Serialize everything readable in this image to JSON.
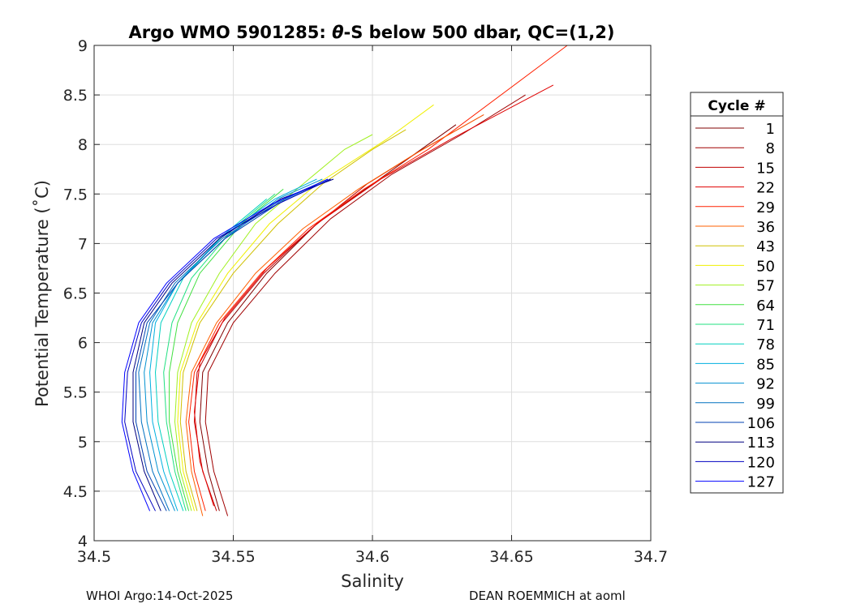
{
  "chart_data": {
    "type": "line",
    "title": "Argo WMO 5901285: θ-S below 500 dbar,  QC=(1,2)",
    "title_prefix": "Argo WMO 5901285: ",
    "title_theta": "θ",
    "title_suffix": "-S below 500 dbar,  QC=(1,2)",
    "xlabel": "Salinity",
    "ylabel": "Potential Temperature (˚C)",
    "xlim": [
      34.5,
      34.7
    ],
    "ylim": [
      4,
      9
    ],
    "xticks": [
      34.5,
      34.55,
      34.6,
      34.65,
      34.7
    ],
    "xtick_labels": [
      "34.5",
      "34.55",
      "34.6",
      "34.65",
      "34.7"
    ],
    "yticks": [
      4,
      4.5,
      5,
      5.5,
      6,
      6.5,
      7,
      7.5,
      8,
      8.5,
      9
    ],
    "ytick_labels": [
      "4",
      "4.5",
      "5",
      "5.5",
      "6",
      "6.5",
      "7",
      "7.5",
      "8",
      "8.5",
      "9"
    ],
    "grid": true,
    "legend_title": "Cycle #",
    "legend_position": "right",
    "series": [
      {
        "name": "1",
        "color": "#800000",
        "points": [
          [
            34.545,
            4.3
          ],
          [
            34.541,
            4.7
          ],
          [
            34.538,
            5.2
          ],
          [
            34.539,
            5.7
          ],
          [
            34.548,
            6.2
          ],
          [
            34.562,
            6.7
          ],
          [
            34.58,
            7.2
          ],
          [
            34.6,
            7.6
          ],
          [
            34.62,
            8.0
          ],
          [
            34.63,
            8.2
          ]
        ]
      },
      {
        "name": "8",
        "color": "#a00000",
        "points": [
          [
            34.548,
            4.25
          ],
          [
            34.543,
            4.7
          ],
          [
            34.54,
            5.2
          ],
          [
            34.541,
            5.7
          ],
          [
            34.55,
            6.2
          ],
          [
            34.565,
            6.7
          ],
          [
            34.585,
            7.25
          ],
          [
            34.607,
            7.7
          ],
          [
            34.632,
            8.1
          ],
          [
            34.655,
            8.5
          ]
        ]
      },
      {
        "name": "15",
        "color": "#c00000",
        "points": [
          [
            34.544,
            4.3
          ],
          [
            34.539,
            4.7
          ],
          [
            34.536,
            5.2
          ],
          [
            34.537,
            5.7
          ],
          [
            34.546,
            6.2
          ],
          [
            34.561,
            6.7
          ],
          [
            34.578,
            7.15
          ],
          [
            34.598,
            7.6
          ],
          [
            34.618,
            7.95
          ],
          [
            34.64,
            8.3
          ]
        ]
      },
      {
        "name": "22",
        "color": "#e00000",
        "points": [
          [
            34.543,
            4.35
          ],
          [
            34.538,
            4.8
          ],
          [
            34.536,
            5.3
          ],
          [
            34.538,
            5.8
          ],
          [
            34.547,
            6.25
          ],
          [
            34.562,
            6.75
          ],
          [
            34.58,
            7.2
          ],
          [
            34.603,
            7.65
          ],
          [
            34.628,
            8.05
          ],
          [
            34.665,
            8.6
          ]
        ]
      },
      {
        "name": "29",
        "color": "#ff2000",
        "points": [
          [
            34.54,
            4.3
          ],
          [
            34.536,
            4.7
          ],
          [
            34.534,
            5.2
          ],
          [
            34.536,
            5.7
          ],
          [
            34.545,
            6.2
          ],
          [
            34.56,
            6.7
          ],
          [
            34.577,
            7.15
          ],
          [
            34.597,
            7.55
          ],
          [
            34.62,
            7.95
          ],
          [
            34.67,
            9.0
          ]
        ]
      },
      {
        "name": "36",
        "color": "#ff6000",
        "points": [
          [
            34.539,
            4.25
          ],
          [
            34.535,
            4.7
          ],
          [
            34.533,
            5.2
          ],
          [
            34.535,
            5.7
          ],
          [
            34.544,
            6.2
          ],
          [
            34.558,
            6.7
          ],
          [
            34.575,
            7.15
          ],
          [
            34.595,
            7.55
          ],
          [
            34.615,
            7.9
          ],
          [
            34.64,
            8.3
          ]
        ]
      },
      {
        "name": "43",
        "color": "#d0c000",
        "points": [
          [
            34.537,
            4.3
          ],
          [
            34.533,
            4.7
          ],
          [
            34.531,
            5.2
          ],
          [
            34.532,
            5.7
          ],
          [
            34.538,
            6.2
          ],
          [
            34.55,
            6.7
          ],
          [
            34.566,
            7.2
          ],
          [
            34.582,
            7.6
          ],
          [
            34.6,
            7.95
          ],
          [
            34.612,
            8.15
          ]
        ]
      },
      {
        "name": "50",
        "color": "#f0f000",
        "points": [
          [
            34.536,
            4.3
          ],
          [
            34.532,
            4.7
          ],
          [
            34.53,
            5.2
          ],
          [
            34.531,
            5.7
          ],
          [
            34.537,
            6.2
          ],
          [
            34.548,
            6.7
          ],
          [
            34.563,
            7.2
          ],
          [
            34.58,
            7.6
          ],
          [
            34.605,
            8.05
          ],
          [
            34.622,
            8.4
          ]
        ]
      },
      {
        "name": "57",
        "color": "#a0f020",
        "points": [
          [
            34.535,
            4.3
          ],
          [
            34.531,
            4.7
          ],
          [
            34.529,
            5.2
          ],
          [
            34.53,
            5.7
          ],
          [
            34.535,
            6.2
          ],
          [
            34.545,
            6.7
          ],
          [
            34.558,
            7.2
          ],
          [
            34.575,
            7.6
          ],
          [
            34.59,
            7.95
          ],
          [
            34.6,
            8.1
          ]
        ]
      },
      {
        "name": "64",
        "color": "#40e040",
        "points": [
          [
            34.534,
            4.3
          ],
          [
            34.53,
            4.7
          ],
          [
            34.527,
            5.2
          ],
          [
            34.527,
            5.7
          ],
          [
            34.53,
            6.2
          ],
          [
            34.538,
            6.7
          ],
          [
            34.553,
            7.2
          ],
          [
            34.568,
            7.55
          ]
        ]
      },
      {
        "name": "71",
        "color": "#20e080",
        "points": [
          [
            34.533,
            4.3
          ],
          [
            34.529,
            4.7
          ],
          [
            34.526,
            5.2
          ],
          [
            34.525,
            5.7
          ],
          [
            34.528,
            6.2
          ],
          [
            34.535,
            6.65
          ],
          [
            34.55,
            7.15
          ],
          [
            34.565,
            7.5
          ]
        ]
      },
      {
        "name": "78",
        "color": "#00d0c0",
        "points": [
          [
            34.532,
            4.3
          ],
          [
            34.527,
            4.7
          ],
          [
            34.523,
            5.2
          ],
          [
            34.522,
            5.7
          ],
          [
            34.524,
            6.2
          ],
          [
            34.532,
            6.65
          ],
          [
            34.547,
            7.1
          ],
          [
            34.562,
            7.45
          ]
        ]
      },
      {
        "name": "85",
        "color": "#00b0e0",
        "points": [
          [
            34.53,
            4.3
          ],
          [
            34.525,
            4.7
          ],
          [
            34.521,
            5.2
          ],
          [
            34.52,
            5.7
          ],
          [
            34.522,
            6.2
          ],
          [
            34.53,
            6.6
          ],
          [
            34.545,
            7.05
          ],
          [
            34.565,
            7.45
          ],
          [
            34.58,
            7.65
          ]
        ]
      },
      {
        "name": "92",
        "color": "#0090d0",
        "points": [
          [
            34.529,
            4.3
          ],
          [
            34.523,
            4.7
          ],
          [
            34.519,
            5.2
          ],
          [
            34.518,
            5.7
          ],
          [
            34.521,
            6.2
          ],
          [
            34.53,
            6.6
          ],
          [
            34.547,
            7.05
          ],
          [
            34.566,
            7.45
          ],
          [
            34.582,
            7.65
          ]
        ]
      },
      {
        "name": "99",
        "color": "#0070c0",
        "points": [
          [
            34.527,
            4.3
          ],
          [
            34.521,
            4.7
          ],
          [
            34.517,
            5.2
          ],
          [
            34.516,
            5.7
          ],
          [
            34.52,
            6.2
          ],
          [
            34.529,
            6.6
          ],
          [
            34.546,
            7.05
          ],
          [
            34.565,
            7.4
          ],
          [
            34.584,
            7.65
          ]
        ]
      },
      {
        "name": "106",
        "color": "#0040b0",
        "points": [
          [
            34.526,
            4.3
          ],
          [
            34.519,
            4.7
          ],
          [
            34.515,
            5.2
          ],
          [
            34.515,
            5.7
          ],
          [
            34.519,
            6.2
          ],
          [
            34.53,
            6.6
          ],
          [
            34.547,
            7.05
          ],
          [
            34.566,
            7.4
          ],
          [
            34.585,
            7.65
          ]
        ]
      },
      {
        "name": "113",
        "color": "#000080",
        "points": [
          [
            34.524,
            4.3
          ],
          [
            34.518,
            4.7
          ],
          [
            34.514,
            5.2
          ],
          [
            34.514,
            5.7
          ],
          [
            34.518,
            6.2
          ],
          [
            34.528,
            6.6
          ],
          [
            34.545,
            7.05
          ],
          [
            34.567,
            7.45
          ],
          [
            34.586,
            7.65
          ]
        ]
      },
      {
        "name": "120",
        "color": "#0000c0",
        "points": [
          [
            34.522,
            4.3
          ],
          [
            34.515,
            4.7
          ],
          [
            34.511,
            5.2
          ],
          [
            34.512,
            5.7
          ],
          [
            34.517,
            6.2
          ],
          [
            34.527,
            6.6
          ],
          [
            34.544,
            7.05
          ],
          [
            34.566,
            7.4
          ],
          [
            34.585,
            7.65
          ]
        ]
      },
      {
        "name": "127",
        "color": "#0000ff",
        "points": [
          [
            34.52,
            4.3
          ],
          [
            34.514,
            4.7
          ],
          [
            34.51,
            5.2
          ],
          [
            34.511,
            5.7
          ],
          [
            34.516,
            6.2
          ],
          [
            34.526,
            6.6
          ],
          [
            34.543,
            7.05
          ],
          [
            34.564,
            7.4
          ],
          [
            34.584,
            7.65
          ]
        ]
      }
    ]
  },
  "footer": {
    "left": "WHOI Argo:14-Oct-2025",
    "right": "DEAN ROEMMICH at aoml"
  }
}
